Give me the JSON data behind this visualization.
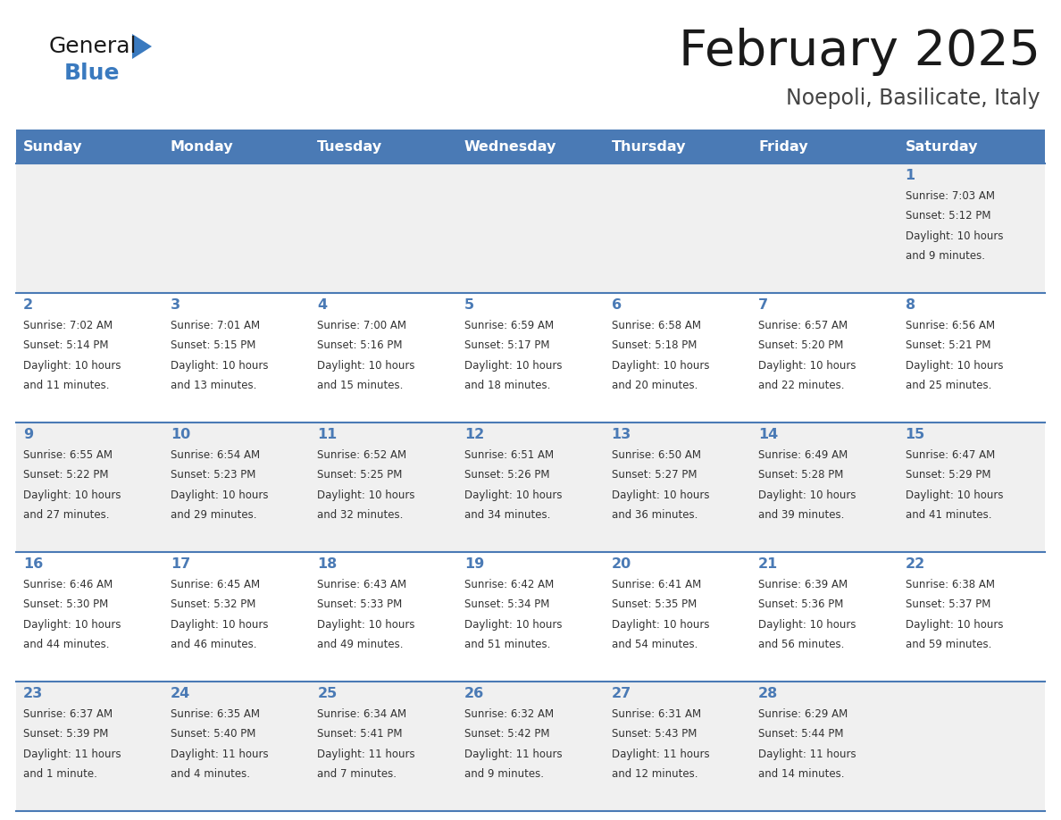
{
  "title": "February 2025",
  "subtitle": "Noepoli, Basilicate, Italy",
  "days_of_week": [
    "Sunday",
    "Monday",
    "Tuesday",
    "Wednesday",
    "Thursday",
    "Friday",
    "Saturday"
  ],
  "header_bg": "#4a7ab5",
  "header_text": "#ffffff",
  "row_bg_odd": "#f0f0f0",
  "row_bg_even": "#ffffff",
  "border_color": "#4a7ab5",
  "day_number_color": "#4a7ab5",
  "cell_text_color": "#333333",
  "title_color": "#1a1a1a",
  "subtitle_color": "#444444",
  "logo_general_color": "#1a1a1a",
  "logo_blue_color": "#3a7abf",
  "calendar_data": [
    [
      null,
      null,
      null,
      null,
      null,
      null,
      {
        "day": 1,
        "sunrise": "7:03 AM",
        "sunset": "5:12 PM",
        "daylight": "10 hours",
        "daylight2": "and 9 minutes."
      }
    ],
    [
      {
        "day": 2,
        "sunrise": "7:02 AM",
        "sunset": "5:14 PM",
        "daylight": "10 hours",
        "daylight2": "and 11 minutes."
      },
      {
        "day": 3,
        "sunrise": "7:01 AM",
        "sunset": "5:15 PM",
        "daylight": "10 hours",
        "daylight2": "and 13 minutes."
      },
      {
        "day": 4,
        "sunrise": "7:00 AM",
        "sunset": "5:16 PM",
        "daylight": "10 hours",
        "daylight2": "and 15 minutes."
      },
      {
        "day": 5,
        "sunrise": "6:59 AM",
        "sunset": "5:17 PM",
        "daylight": "10 hours",
        "daylight2": "and 18 minutes."
      },
      {
        "day": 6,
        "sunrise": "6:58 AM",
        "sunset": "5:18 PM",
        "daylight": "10 hours",
        "daylight2": "and 20 minutes."
      },
      {
        "day": 7,
        "sunrise": "6:57 AM",
        "sunset": "5:20 PM",
        "daylight": "10 hours",
        "daylight2": "and 22 minutes."
      },
      {
        "day": 8,
        "sunrise": "6:56 AM",
        "sunset": "5:21 PM",
        "daylight": "10 hours",
        "daylight2": "and 25 minutes."
      }
    ],
    [
      {
        "day": 9,
        "sunrise": "6:55 AM",
        "sunset": "5:22 PM",
        "daylight": "10 hours",
        "daylight2": "and 27 minutes."
      },
      {
        "day": 10,
        "sunrise": "6:54 AM",
        "sunset": "5:23 PM",
        "daylight": "10 hours",
        "daylight2": "and 29 minutes."
      },
      {
        "day": 11,
        "sunrise": "6:52 AM",
        "sunset": "5:25 PM",
        "daylight": "10 hours",
        "daylight2": "and 32 minutes."
      },
      {
        "day": 12,
        "sunrise": "6:51 AM",
        "sunset": "5:26 PM",
        "daylight": "10 hours",
        "daylight2": "and 34 minutes."
      },
      {
        "day": 13,
        "sunrise": "6:50 AM",
        "sunset": "5:27 PM",
        "daylight": "10 hours",
        "daylight2": "and 36 minutes."
      },
      {
        "day": 14,
        "sunrise": "6:49 AM",
        "sunset": "5:28 PM",
        "daylight": "10 hours",
        "daylight2": "and 39 minutes."
      },
      {
        "day": 15,
        "sunrise": "6:47 AM",
        "sunset": "5:29 PM",
        "daylight": "10 hours",
        "daylight2": "and 41 minutes."
      }
    ],
    [
      {
        "day": 16,
        "sunrise": "6:46 AM",
        "sunset": "5:30 PM",
        "daylight": "10 hours",
        "daylight2": "and 44 minutes."
      },
      {
        "day": 17,
        "sunrise": "6:45 AM",
        "sunset": "5:32 PM",
        "daylight": "10 hours",
        "daylight2": "and 46 minutes."
      },
      {
        "day": 18,
        "sunrise": "6:43 AM",
        "sunset": "5:33 PM",
        "daylight": "10 hours",
        "daylight2": "and 49 minutes."
      },
      {
        "day": 19,
        "sunrise": "6:42 AM",
        "sunset": "5:34 PM",
        "daylight": "10 hours",
        "daylight2": "and 51 minutes."
      },
      {
        "day": 20,
        "sunrise": "6:41 AM",
        "sunset": "5:35 PM",
        "daylight": "10 hours",
        "daylight2": "and 54 minutes."
      },
      {
        "day": 21,
        "sunrise": "6:39 AM",
        "sunset": "5:36 PM",
        "daylight": "10 hours",
        "daylight2": "and 56 minutes."
      },
      {
        "day": 22,
        "sunrise": "6:38 AM",
        "sunset": "5:37 PM",
        "daylight": "10 hours",
        "daylight2": "and 59 minutes."
      }
    ],
    [
      {
        "day": 23,
        "sunrise": "6:37 AM",
        "sunset": "5:39 PM",
        "daylight": "11 hours",
        "daylight2": "and 1 minute."
      },
      {
        "day": 24,
        "sunrise": "6:35 AM",
        "sunset": "5:40 PM",
        "daylight": "11 hours",
        "daylight2": "and 4 minutes."
      },
      {
        "day": 25,
        "sunrise": "6:34 AM",
        "sunset": "5:41 PM",
        "daylight": "11 hours",
        "daylight2": "and 7 minutes."
      },
      {
        "day": 26,
        "sunrise": "6:32 AM",
        "sunset": "5:42 PM",
        "daylight": "11 hours",
        "daylight2": "and 9 minutes."
      },
      {
        "day": 27,
        "sunrise": "6:31 AM",
        "sunset": "5:43 PM",
        "daylight": "11 hours",
        "daylight2": "and 12 minutes."
      },
      {
        "day": 28,
        "sunrise": "6:29 AM",
        "sunset": "5:44 PM",
        "daylight": "11 hours",
        "daylight2": "and 14 minutes."
      },
      null
    ]
  ]
}
